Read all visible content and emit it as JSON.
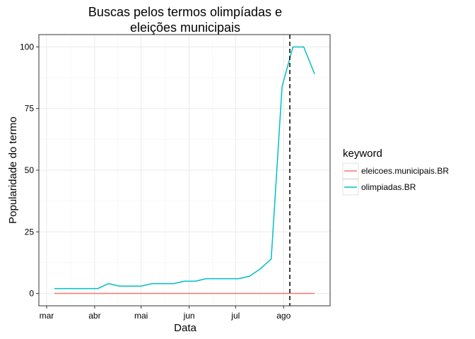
{
  "chart_data": {
    "type": "line",
    "title_lines": [
      "Buscas pelos termos olimpíadas e",
      "eleições municipais"
    ],
    "xlabel": "Data",
    "ylabel": "Popularidade do termo",
    "x_ticks": [
      {
        "label": "mar",
        "date": "2016-03-01"
      },
      {
        "label": "abr",
        "date": "2016-04-01"
      },
      {
        "label": "mai",
        "date": "2016-05-01"
      },
      {
        "label": "jun",
        "date": "2016-06-01"
      },
      {
        "label": "jul",
        "date": "2016-07-01"
      },
      {
        "label": "ago",
        "date": "2016-08-01"
      }
    ],
    "xlim": [
      "2016-02-25",
      "2016-08-31"
    ],
    "y_ticks": [
      0,
      25,
      50,
      75,
      100
    ],
    "ylim": [
      -5,
      105
    ],
    "grid": true,
    "legend": {
      "title": "keyword",
      "placement": "right"
    },
    "vline": {
      "date": "2016-08-05",
      "style": "dashed"
    },
    "series": [
      {
        "name": "eleicoes.municipais.BR",
        "color": "#F8766D",
        "x": [
          "2016-03-06",
          "2016-08-21"
        ],
        "values": [
          0,
          0
        ]
      },
      {
        "name": "olimpiadas.BR",
        "color": "#00BFC4",
        "x": [
          "2016-03-06",
          "2016-03-13",
          "2016-03-20",
          "2016-03-27",
          "2016-04-03",
          "2016-04-10",
          "2016-04-17",
          "2016-04-24",
          "2016-05-01",
          "2016-05-08",
          "2016-05-15",
          "2016-05-22",
          "2016-05-29",
          "2016-06-05",
          "2016-06-12",
          "2016-06-19",
          "2016-06-26",
          "2016-07-03",
          "2016-07-10",
          "2016-07-17",
          "2016-07-24",
          "2016-07-31",
          "2016-08-07",
          "2016-08-14",
          "2016-08-21"
        ],
        "values": [
          2,
          2,
          2,
          2,
          2,
          4,
          3,
          3,
          3,
          4,
          4,
          4,
          5,
          5,
          6,
          6,
          6,
          6,
          7,
          10,
          14,
          84,
          100,
          100,
          89
        ]
      }
    ]
  }
}
